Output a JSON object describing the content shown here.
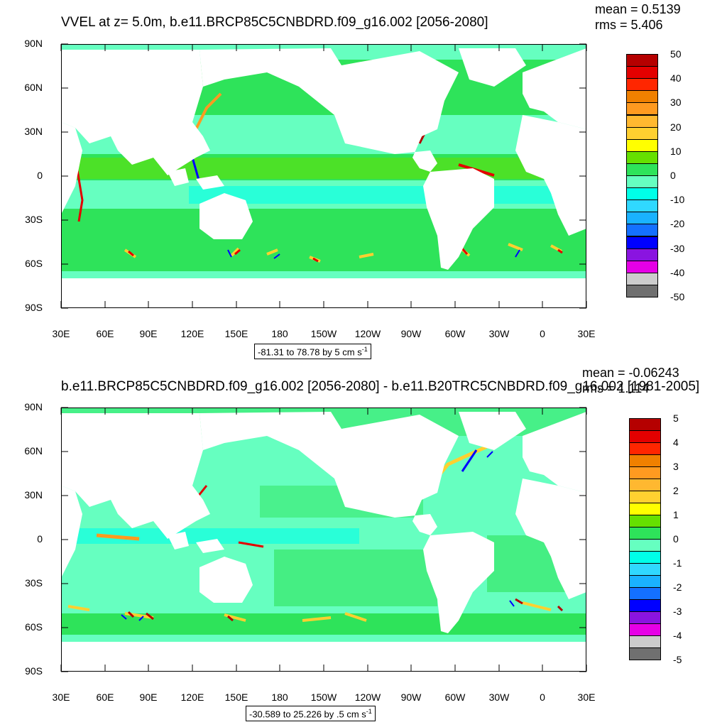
{
  "top": {
    "title": "VVEL at z=   5.0m, b.e11.BRCP85C5CNBDRD.f09_g16.002 [2056-2080]",
    "mean": "mean = 0.5139",
    "rms": "rms = 5.406",
    "info": "-81.31 to 78.78 by 5 cm s",
    "info_sup": "-1",
    "legend_labels": [
      "50",
      "40",
      "30",
      "20",
      "10",
      "0",
      "-10",
      "-20",
      "-30",
      "-40",
      "-50"
    ],
    "legend_colors": [
      "#b50000",
      "#e30000",
      "#ff2600",
      "#f08000",
      "#ff9a20",
      "#ffb830",
      "#ffd030",
      "#ffff00",
      "#66e000",
      "#2ee35a",
      "#66ffc0",
      "#00ffe8",
      "#30d8ff",
      "#1ab2ff",
      "#1470ff",
      "#0000ff",
      "#8a14e0",
      "#e600e6",
      "#cccccc",
      "#707070"
    ]
  },
  "bottom": {
    "title": "b.e11.BRCP85C5CNBDRD.f09_g16.002 [2056-2080] - b.e11.B20TRC5CNBDRD.f09_g16.002 [1981-2005]",
    "mean": "mean = -0.06243",
    "rms": "rms = 1.114",
    "info": "-30.589 to 25.226 by .5 cm s",
    "info_sup": "-1",
    "legend_labels": [
      "5",
      "4",
      "3",
      "2",
      "1",
      "0",
      "-1",
      "-2",
      "-3",
      "-4",
      "-5"
    ],
    "legend_colors": [
      "#b50000",
      "#e30000",
      "#ff2600",
      "#f08000",
      "#ff9a20",
      "#ffb830",
      "#ffd030",
      "#ffff00",
      "#66e000",
      "#2ee35a",
      "#66ffc0",
      "#00ffe8",
      "#30d8ff",
      "#1ab2ff",
      "#1470ff",
      "#0000ff",
      "#8a14e0",
      "#e600e6",
      "#cccccc",
      "#707070"
    ]
  },
  "axes": {
    "lat_labels": [
      "90N",
      "60N",
      "30N",
      "0",
      "30S",
      "60S",
      "90S"
    ],
    "lon_labels": [
      "30E",
      "60E",
      "90E",
      "120E",
      "150E",
      "180",
      "150W",
      "120W",
      "90W",
      "60W",
      "30W",
      "0",
      "30E"
    ]
  },
  "colors": {
    "ocean_base": "#2ee35a",
    "band_light": "#66ffc0",
    "band_cyan": "#00ffe8",
    "land": "#ffffff"
  }
}
